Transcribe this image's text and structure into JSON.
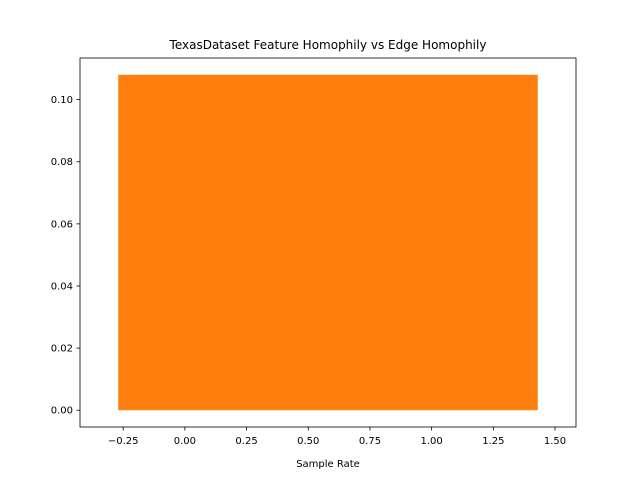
{
  "chart_data": {
    "type": "bar",
    "title": "TexasDataset Feature Homophily vs Edge Homophily",
    "xlabel": "Sample Rate",
    "ylabel": "",
    "bars": [
      {
        "x_start": -0.27,
        "x_end": 1.43,
        "value": 0.108
      }
    ],
    "xlim": [
      -0.425,
      1.585
    ],
    "ylim": [
      -0.0054,
      0.1134
    ],
    "xticks": [
      -0.25,
      0.0,
      0.25,
      0.5,
      0.75,
      1.0,
      1.25,
      1.5
    ],
    "xtick_labels": [
      "−0.25",
      "0.00",
      "0.25",
      "0.50",
      "0.75",
      "1.00",
      "1.25",
      "1.50"
    ],
    "yticks": [
      0.0,
      0.02,
      0.04,
      0.06,
      0.08,
      0.1
    ],
    "ytick_labels": [
      "0.00",
      "0.02",
      "0.04",
      "0.06",
      "0.08",
      "0.10"
    ],
    "bar_color": "#ff7f0e",
    "grid": false,
    "legend": "none"
  }
}
